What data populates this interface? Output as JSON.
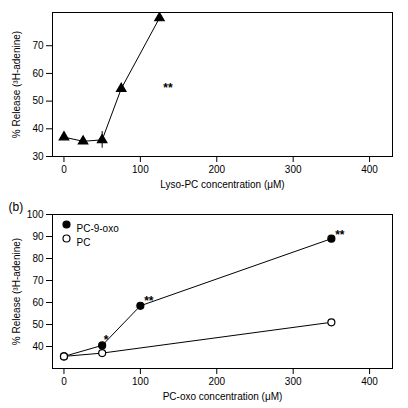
{
  "chart_data": [
    {
      "type": "line",
      "xlabel": "Lyso-PC concentration (μM)",
      "ylabel": "% Release (³H-adenine)",
      "x": [
        0,
        25,
        50,
        75,
        125
      ],
      "values": [
        37.0,
        35.5,
        36.0,
        54.5,
        80.0
      ],
      "yerr": [
        null,
        null,
        3.0,
        null,
        null
      ],
      "color": "black",
      "marker": "triangle",
      "annotations": [
        {
          "x": 130,
          "y": 54.5,
          "text": "**"
        }
      ],
      "xlim": [
        -15,
        430
      ],
      "ylim": [
        30,
        82
      ],
      "xticks": [
        0,
        100,
        200,
        300,
        400
      ],
      "yticks": [
        30,
        40,
        50,
        60,
        70
      ]
    },
    {
      "type": "line",
      "title": "(b)",
      "xlabel": "PC-oxo concentration (μM)",
      "ylabel": "% Release (³H-adenine)",
      "series": [
        {
          "name": "PC-9-oxo",
          "color": "black",
          "marker": "filled_circle",
          "x": [
            0,
            50,
            100,
            350
          ],
          "values": [
            35.5,
            40.5,
            58.5,
            89.0
          ]
        },
        {
          "name": "PC",
          "color": "black",
          "marker": "open_circle",
          "x": [
            0,
            50,
            350
          ],
          "values": [
            35.5,
            37.0,
            51.0
          ]
        }
      ],
      "annotations": [
        {
          "x": 105,
          "y": 60.5,
          "text": "**"
        },
        {
          "x": 52,
          "y": 43.0,
          "text": "*"
        },
        {
          "x": 355,
          "y": 90.5,
          "text": "**"
        }
      ],
      "legend": "upper left",
      "xlim": [
        -15,
        430
      ],
      "ylim": [
        30,
        100
      ],
      "xticks": [
        0,
        100,
        200,
        300,
        400
      ],
      "yticks": [
        40,
        50,
        60,
        70,
        80,
        90,
        100
      ]
    }
  ]
}
